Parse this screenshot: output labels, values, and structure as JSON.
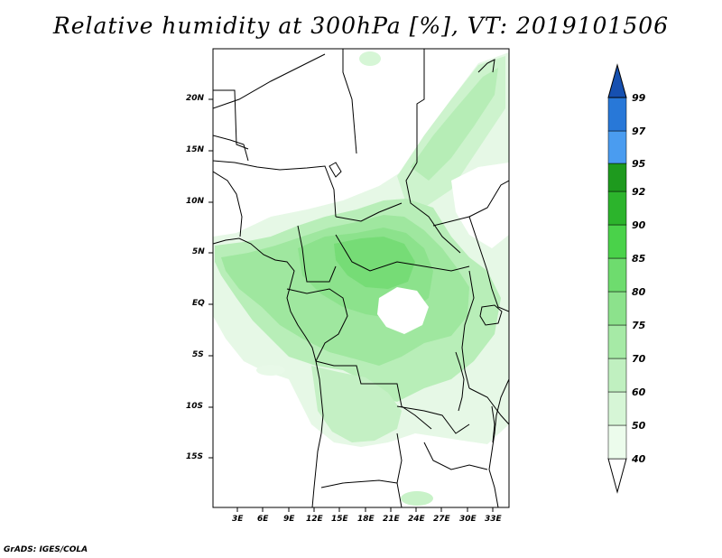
{
  "title": "Relative humidity at 300hPa [%], VT: 2019101506",
  "credit": "GrADS: IGES/COLA",
  "map": {
    "lat_ticks": [
      "20N",
      "15N",
      "10N",
      "5N",
      "EQ",
      "5S",
      "10S",
      "15S"
    ],
    "lon_ticks": [
      "3E",
      "6E",
      "9E",
      "12E",
      "15E",
      "18E",
      "21E",
      "24E",
      "27E",
      "30E",
      "33E"
    ]
  },
  "colorbar": {
    "levels": [
      "40",
      "50",
      "60",
      "70",
      "75",
      "80",
      "85",
      "90",
      "92",
      "95",
      "97",
      "99"
    ],
    "colors": [
      "#ecfcec",
      "#d6f6d6",
      "#c0f0c0",
      "#a6eaa6",
      "#8ce28c",
      "#6edc6e",
      "#4ad24a",
      "#2cb42c",
      "#1e9a1e",
      "#138013",
      "#4a9cf0",
      "#2878d8",
      "#1650b0"
    ]
  }
}
